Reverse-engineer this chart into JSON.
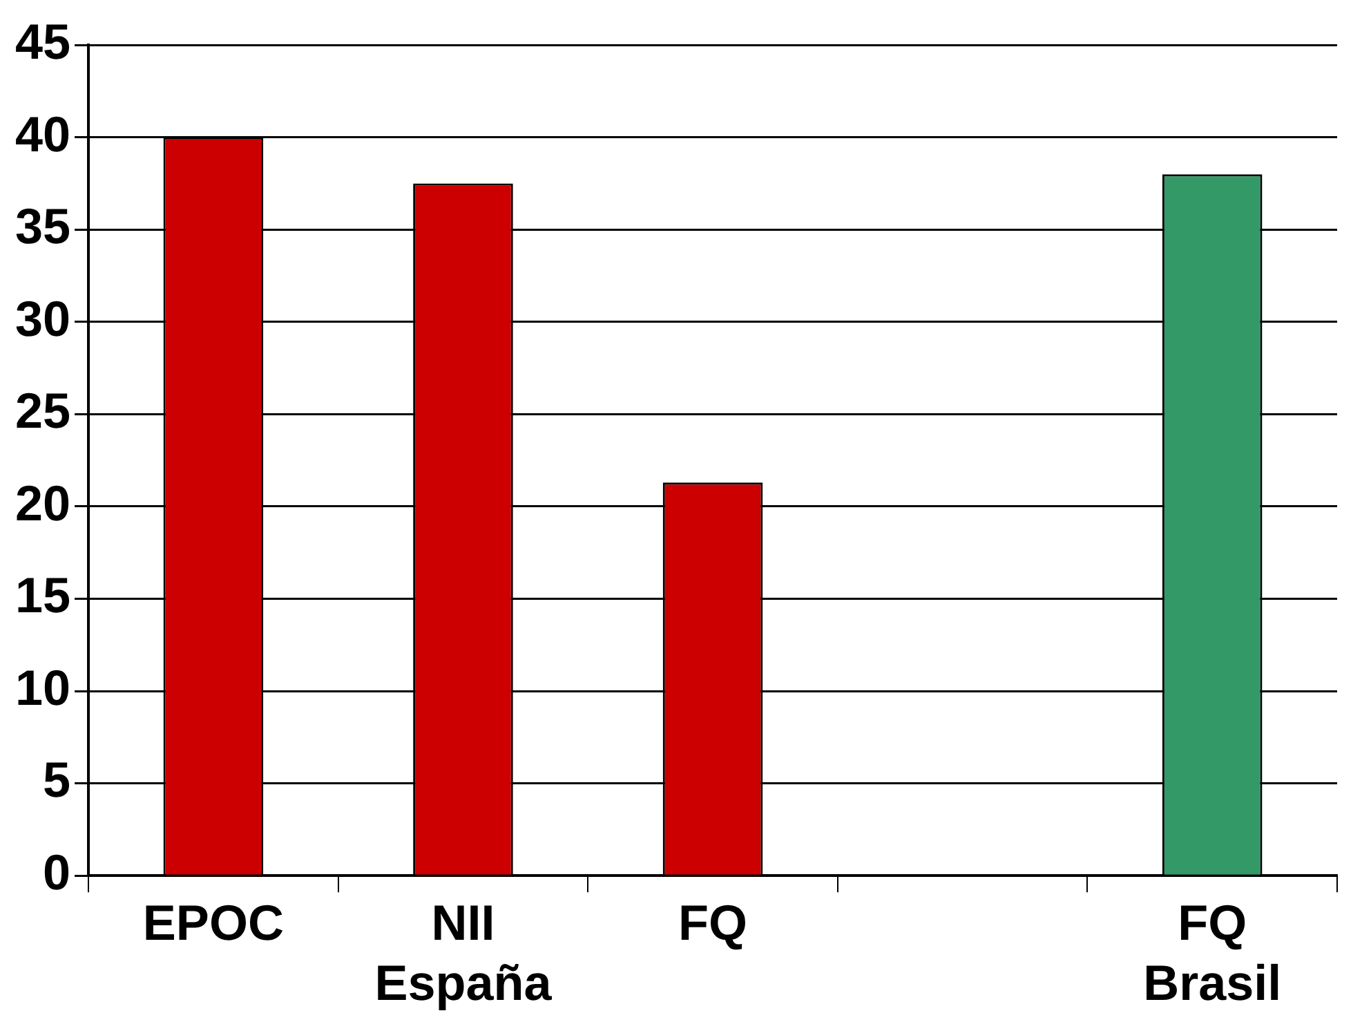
{
  "chart_data": {
    "type": "bar",
    "categories": [
      "EPOC",
      "NII\nEspaña",
      "FQ",
      null,
      "FQ\nBrasil"
    ],
    "values": [
      40,
      37.5,
      21.3,
      null,
      38
    ],
    "colors": [
      "#cc0000",
      "#cc0000",
      "#cc0000",
      "#cc0000",
      "#339966"
    ],
    "ylim": [
      0,
      45
    ],
    "yticks": [
      0,
      5,
      10,
      15,
      20,
      25,
      30,
      35,
      40,
      45
    ],
    "grid": "y",
    "legend": false
  }
}
